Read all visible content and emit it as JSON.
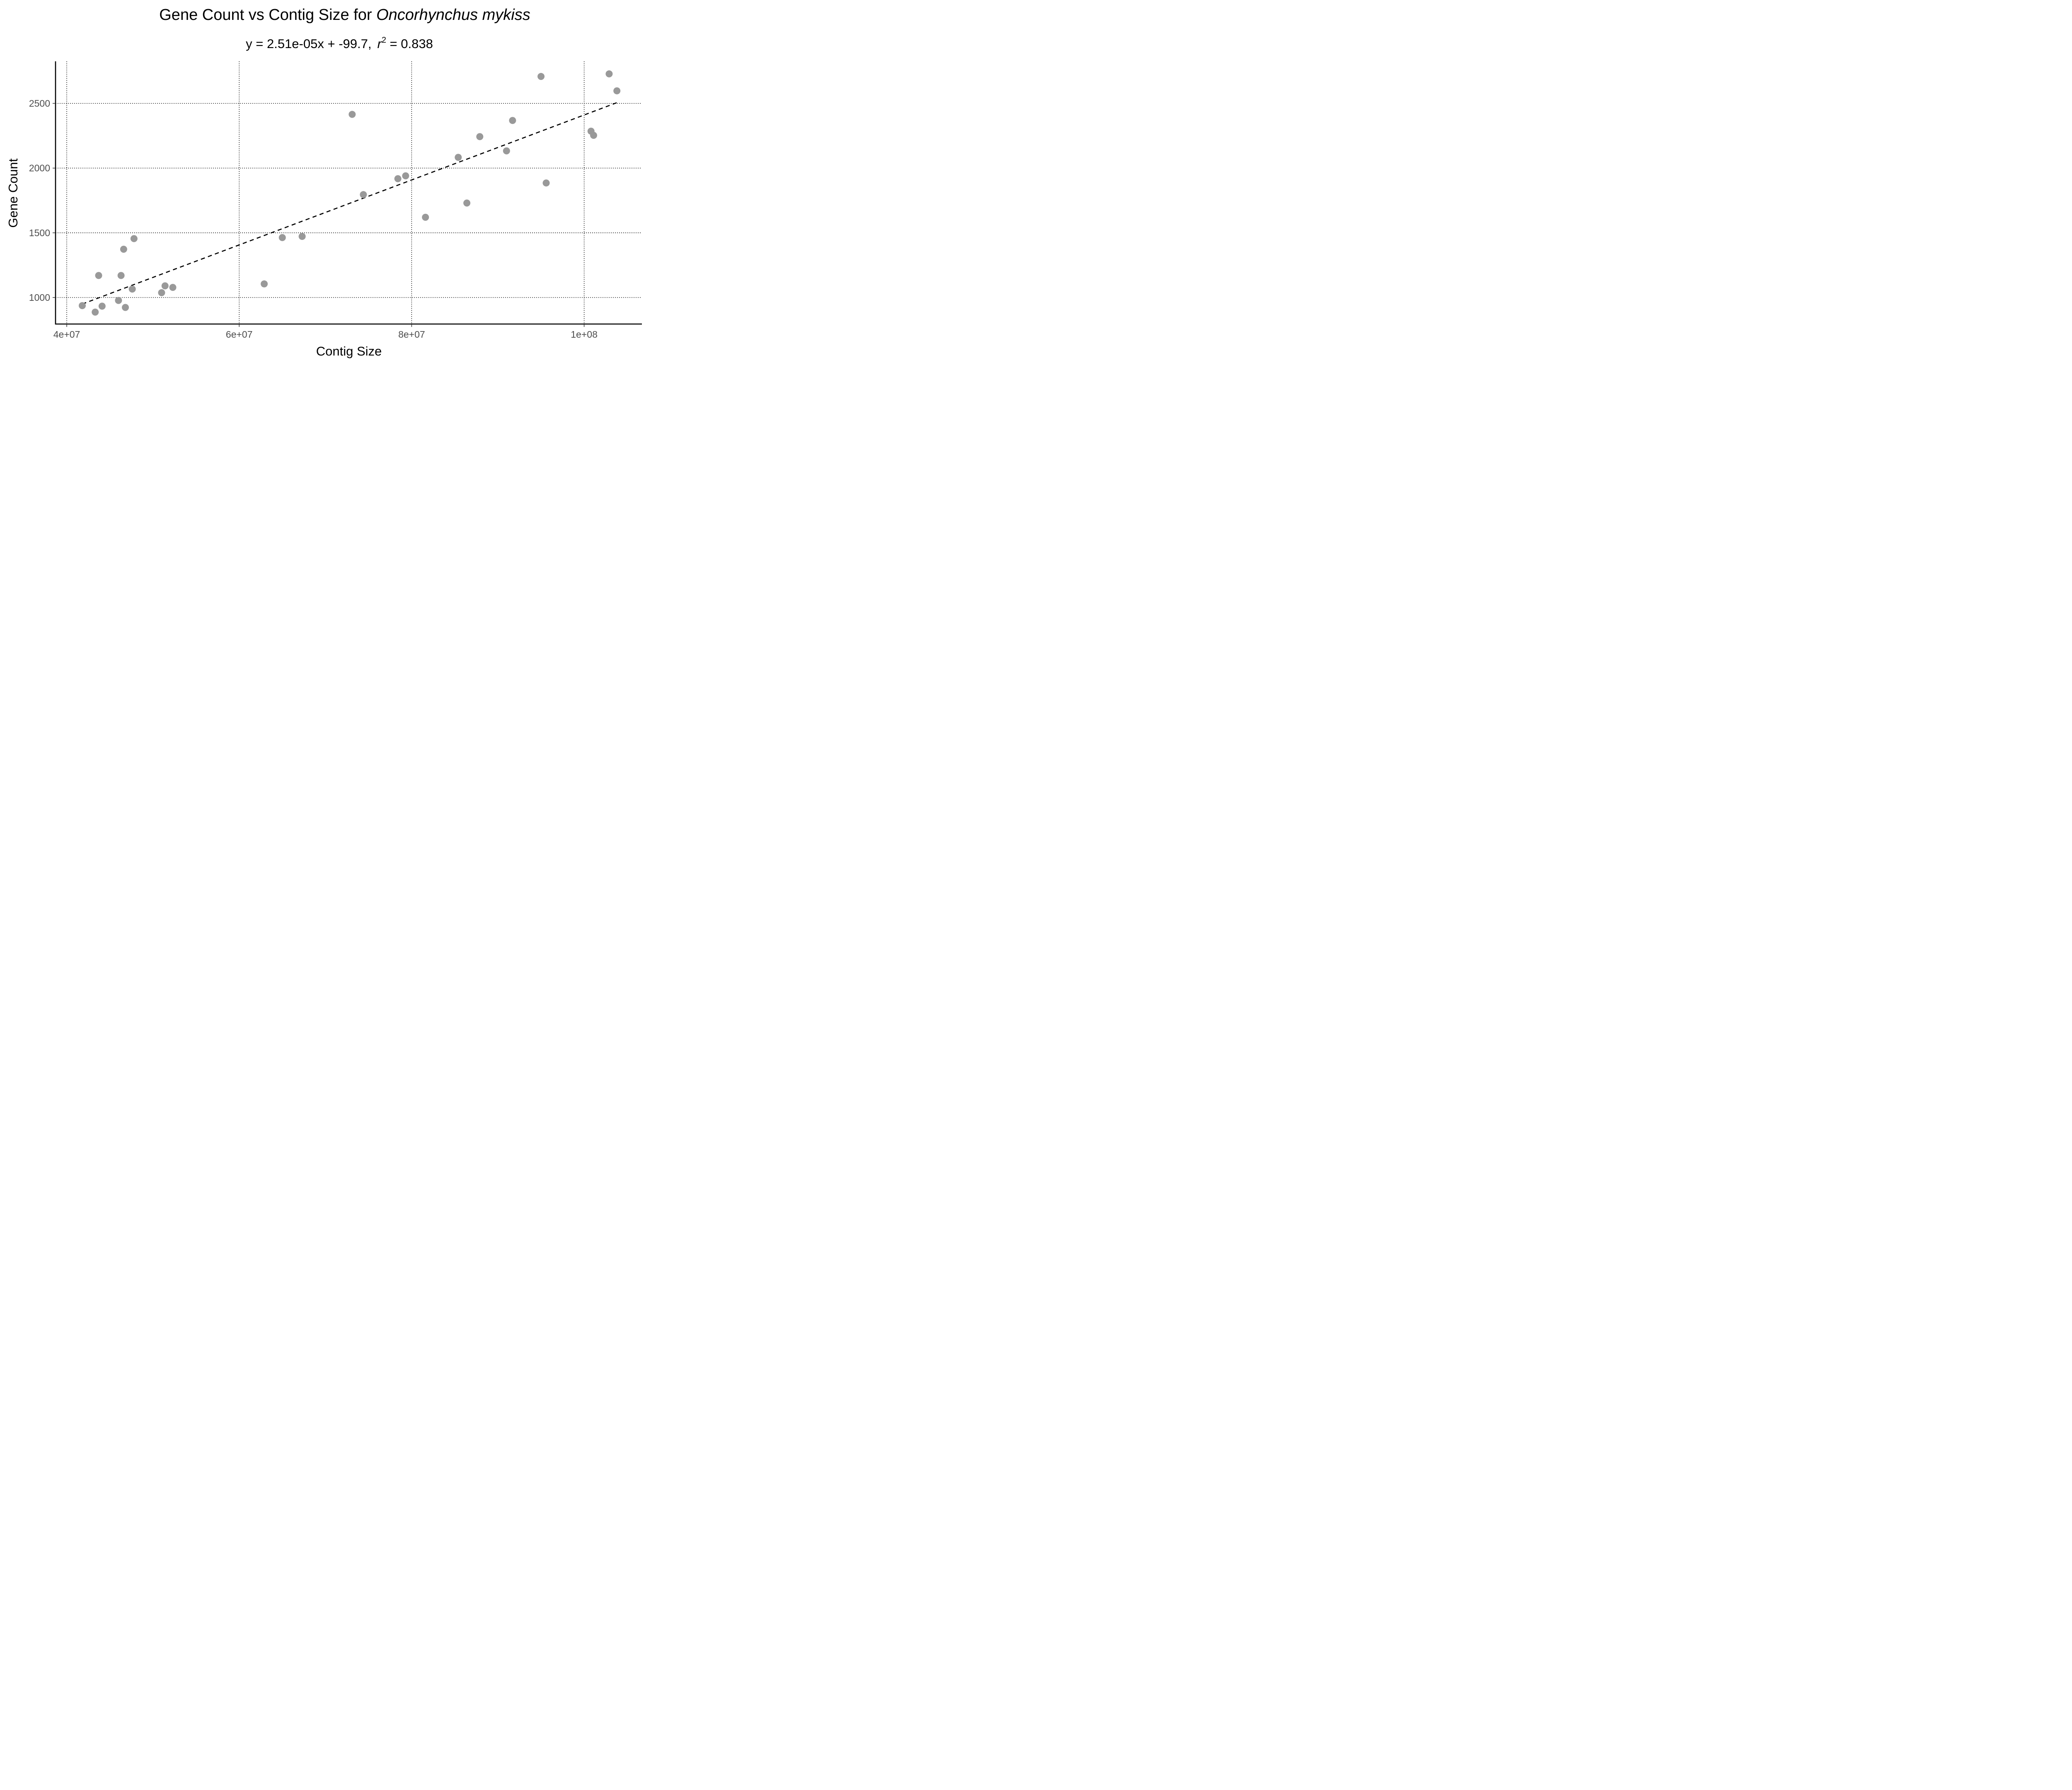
{
  "chart_data": {
    "type": "scatter",
    "title_main": "Gene Count vs Contig Size for ",
    "title_species": "Oncorhynchus mykiss",
    "subtitle": {
      "eq_lhs": "y",
      "eq_eq": " = ",
      "eq_coef": "2.51e-05x",
      "eq_plus": " + ",
      "eq_intercept": "-99.7,",
      "r_symbol": "r",
      "r_exp": "2",
      "r_eq": " = ",
      "r_value": "0.838"
    },
    "xlabel": "Contig Size",
    "ylabel": "Gene Count",
    "xlim": [
      38700000,
      106700000
    ],
    "ylim": [
      795,
      2825
    ],
    "x_ticks": [
      {
        "value": 40000000,
        "label": "4e+07"
      },
      {
        "value": 60000000,
        "label": "6e+07"
      },
      {
        "value": 80000000,
        "label": "8e+07"
      },
      {
        "value": 100000000,
        "label": "1e+08"
      }
    ],
    "y_ticks": [
      {
        "value": 1000,
        "label": "1000"
      },
      {
        "value": 1500,
        "label": "1500"
      },
      {
        "value": 2000,
        "label": "2000"
      },
      {
        "value": 2500,
        "label": "2500"
      }
    ],
    "grid": true,
    "regression": {
      "slope": 2.51e-05,
      "intercept": -99.7,
      "x_range": [
        41800000,
        103800000
      ]
    },
    "points": [
      {
        "x": 41800000,
        "y": 937
      },
      {
        "x": 43300000,
        "y": 887
      },
      {
        "x": 43700000,
        "y": 1170
      },
      {
        "x": 44100000,
        "y": 933
      },
      {
        "x": 46000000,
        "y": 977
      },
      {
        "x": 46300000,
        "y": 1170
      },
      {
        "x": 46600000,
        "y": 1373
      },
      {
        "x": 46800000,
        "y": 923
      },
      {
        "x": 47600000,
        "y": 1065
      },
      {
        "x": 47800000,
        "y": 1455
      },
      {
        "x": 51000000,
        "y": 1037
      },
      {
        "x": 51400000,
        "y": 1090
      },
      {
        "x": 52300000,
        "y": 1078
      },
      {
        "x": 62900000,
        "y": 1105
      },
      {
        "x": 65000000,
        "y": 1463
      },
      {
        "x": 67300000,
        "y": 1472
      },
      {
        "x": 73100000,
        "y": 2415
      },
      {
        "x": 74400000,
        "y": 1795
      },
      {
        "x": 78400000,
        "y": 1918
      },
      {
        "x": 79300000,
        "y": 1940
      },
      {
        "x": 81600000,
        "y": 1620
      },
      {
        "x": 85400000,
        "y": 2083
      },
      {
        "x": 86400000,
        "y": 1730
      },
      {
        "x": 87900000,
        "y": 2243
      },
      {
        "x": 91000000,
        "y": 2133
      },
      {
        "x": 91700000,
        "y": 2368
      },
      {
        "x": 95000000,
        "y": 2708
      },
      {
        "x": 95600000,
        "y": 1885
      },
      {
        "x": 100800000,
        "y": 2285
      },
      {
        "x": 101100000,
        "y": 2253
      },
      {
        "x": 102900000,
        "y": 2728
      },
      {
        "x": 103800000,
        "y": 2597
      }
    ]
  }
}
